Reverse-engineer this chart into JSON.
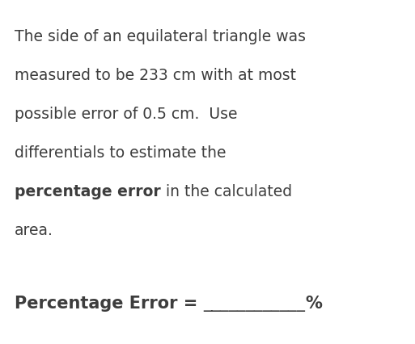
{
  "background_color": "#ffffff",
  "text_color": "#3d3d3d",
  "line1": "The side of an equilateral triangle was",
  "line2": "measured to be 233 cm with at most",
  "line3": "possible error of 0.5 cm.  Use",
  "line4": "differentials to estimate the",
  "line5_bold": "percentage error",
  "line5_normal": " in the calculated",
  "line6": "area.",
  "label_bold": "Percentage Error = ",
  "label_underline": "____________",
  "label_suffix": "%",
  "font_size_body": 13.5,
  "font_size_label": 15.0,
  "fig_width": 5.13,
  "fig_height": 4.26,
  "dpi": 100
}
